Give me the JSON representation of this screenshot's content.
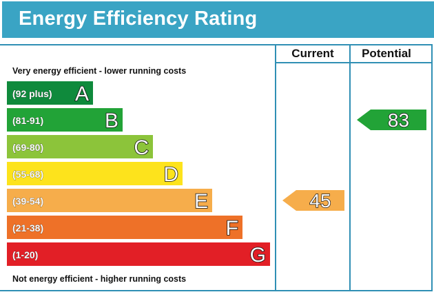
{
  "title": "Energy Efficiency Rating",
  "columns": {
    "current": "Current",
    "potential": "Potential"
  },
  "scale_labels": {
    "top": "Very energy efficient - lower running costs",
    "bottom": "Not energy efficient - higher running costs"
  },
  "chart_data": {
    "type": "bar",
    "title": "Energy Efficiency Rating",
    "bands": [
      {
        "range": "(92 plus)",
        "letter": "A",
        "color": "#0f8a3c"
      },
      {
        "range": "(81-91)",
        "letter": "B",
        "color": "#22a337"
      },
      {
        "range": "(69-80)",
        "letter": "C",
        "color": "#8cc43a"
      },
      {
        "range": "(55-68)",
        "letter": "D",
        "color": "#fde31c"
      },
      {
        "range": "(39-54)",
        "letter": "E",
        "color": "#f6ad4b"
      },
      {
        "range": "(21-38)",
        "letter": "F",
        "color": "#ee7128"
      },
      {
        "range": "(1-20)",
        "letter": "G",
        "color": "#e21f26"
      }
    ],
    "current": {
      "value": 45,
      "band": "E",
      "color": "#f6ad4b"
    },
    "potential": {
      "value": 83,
      "band": "B",
      "color": "#22a337"
    }
  },
  "colors": {
    "header": "#3aa4c4",
    "frame": "#2f8fb4"
  }
}
